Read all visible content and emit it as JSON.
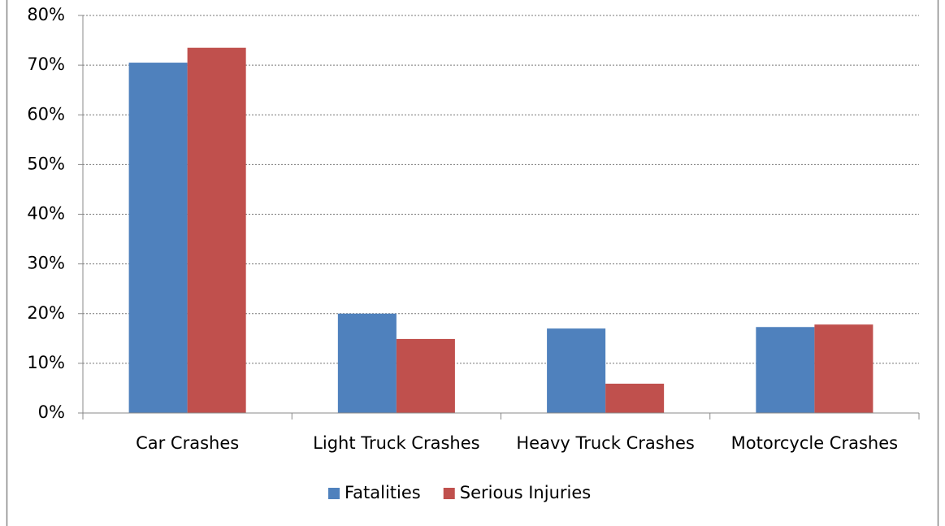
{
  "chart_data": {
    "type": "bar",
    "categories": [
      "Car Crashes",
      "Light Truck Crashes",
      "Heavy Truck Crashes",
      "Motorcycle Crashes"
    ],
    "series": [
      {
        "name": "Fatalities",
        "color": "#4f81bd",
        "values": [
          70.5,
          20.0,
          17.0,
          17.3
        ]
      },
      {
        "name": "Serious Injuries",
        "color": "#c0504d",
        "values": [
          73.5,
          14.9,
          5.9,
          17.8
        ]
      }
    ],
    "ylim": [
      0,
      80
    ],
    "yticks": [
      {
        "value": 0,
        "label": "0%"
      },
      {
        "value": 10,
        "label": "10%"
      },
      {
        "value": 20,
        "label": "20%"
      },
      {
        "value": 30,
        "label": "30%"
      },
      {
        "value": 40,
        "label": "40%"
      },
      {
        "value": 50,
        "label": "50%"
      },
      {
        "value": 60,
        "label": "60%"
      },
      {
        "value": 70,
        "label": "70%"
      },
      {
        "value": 80,
        "label": "80%"
      }
    ],
    "grid": true,
    "legend": "bottom"
  }
}
